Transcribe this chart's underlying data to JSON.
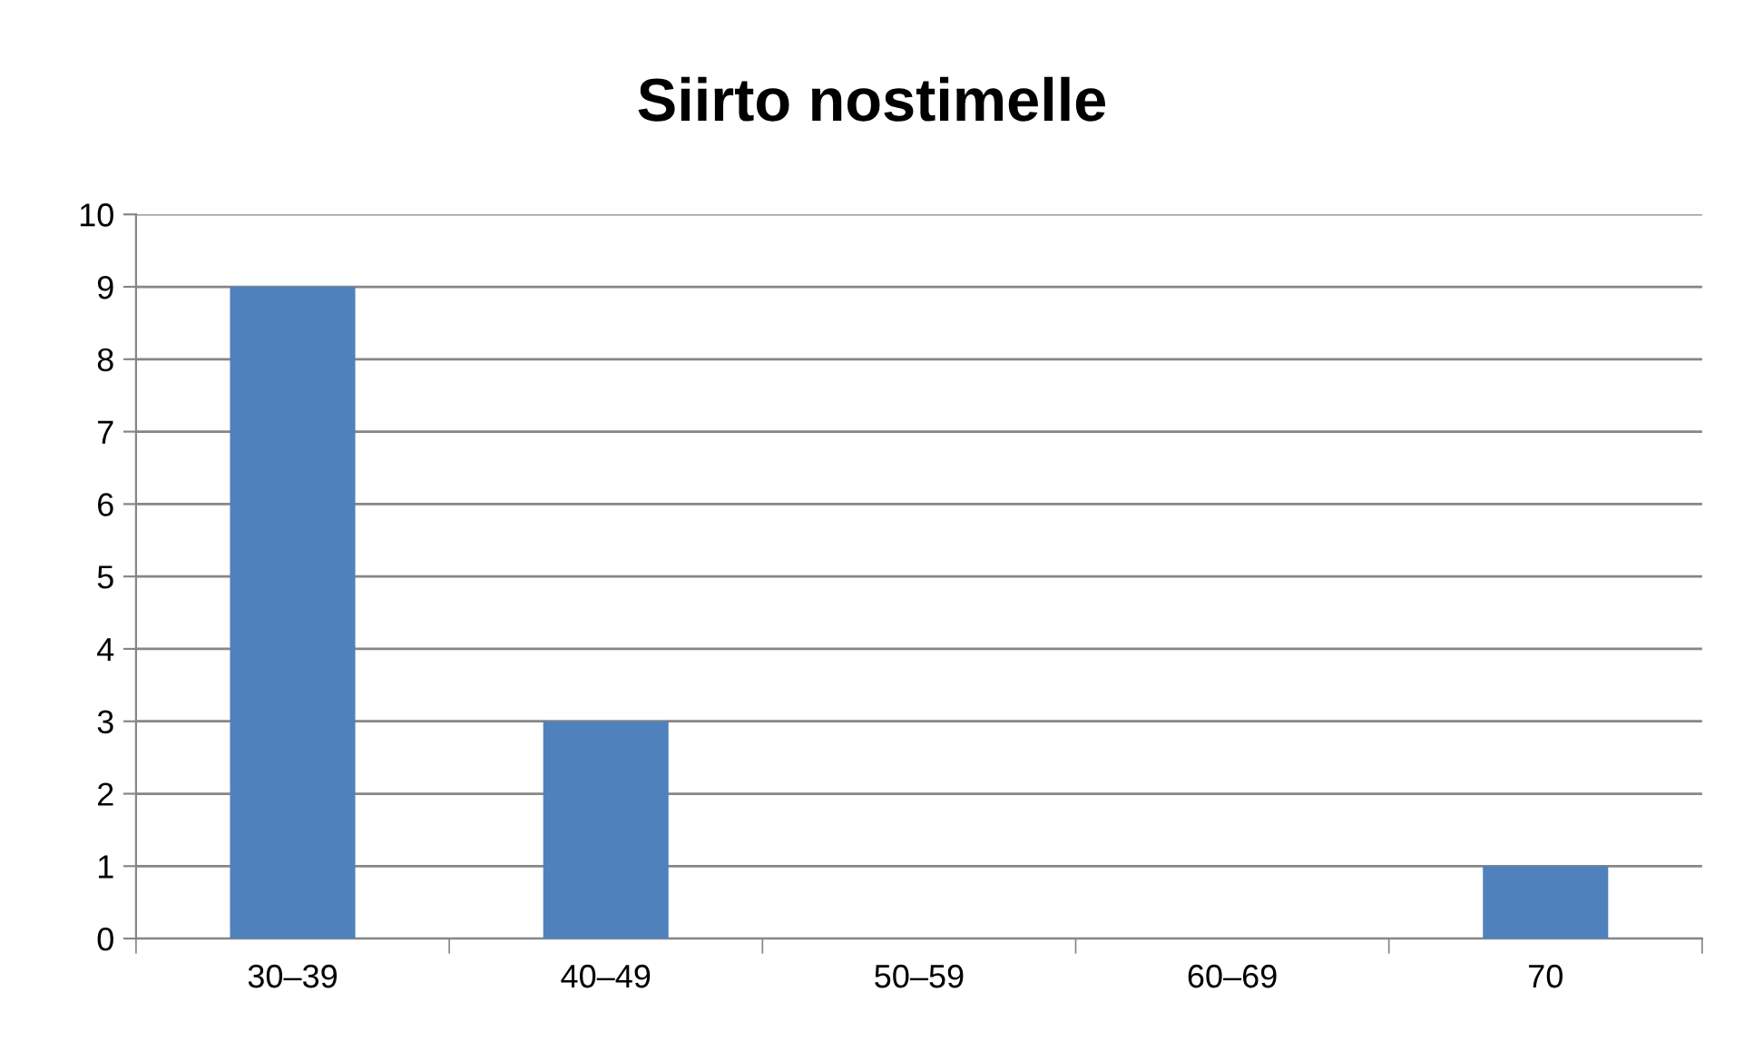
{
  "chart_data": {
    "type": "bar",
    "title": "Siirto nostimelle",
    "categories": [
      "30–39",
      "40–49",
      "50–59",
      "60–69",
      "70"
    ],
    "values": [
      9,
      3,
      0,
      0,
      1
    ],
    "color": "#4f81bd",
    "ylim": [
      0,
      10
    ],
    "yticks": [
      0,
      1,
      2,
      3,
      4,
      5,
      6,
      7,
      8,
      9,
      10
    ],
    "grid": "y",
    "legend": false
  }
}
